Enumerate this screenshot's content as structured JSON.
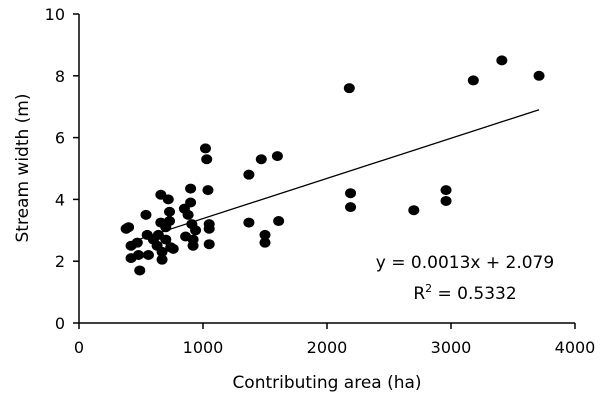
{
  "chart_data": {
    "type": "scatter",
    "xlabel": "Contributing area (ha)",
    "ylabel": "Stream width (m)",
    "xlim": [
      0,
      4000
    ],
    "ylim": [
      0,
      10
    ],
    "x_ticks": [
      "0",
      "1000",
      "2000",
      "3000",
      "4000"
    ],
    "y_ticks": [
      "0",
      "2",
      "4",
      "6",
      "8",
      "10"
    ],
    "grid": false,
    "legend": "none",
    "marker_color": "#000000",
    "points": [
      {
        "x": 380,
        "y": 3.05
      },
      {
        "x": 400,
        "y": 3.1
      },
      {
        "x": 420,
        "y": 2.1
      },
      {
        "x": 420,
        "y": 2.5
      },
      {
        "x": 470,
        "y": 2.6
      },
      {
        "x": 480,
        "y": 2.2
      },
      {
        "x": 490,
        "y": 1.7
      },
      {
        "x": 540,
        "y": 3.5
      },
      {
        "x": 550,
        "y": 2.85
      },
      {
        "x": 560,
        "y": 2.2
      },
      {
        "x": 600,
        "y": 2.7
      },
      {
        "x": 630,
        "y": 2.5
      },
      {
        "x": 640,
        "y": 2.85
      },
      {
        "x": 660,
        "y": 4.15
      },
      {
        "x": 660,
        "y": 3.25
      },
      {
        "x": 670,
        "y": 2.3
      },
      {
        "x": 670,
        "y": 2.05
      },
      {
        "x": 700,
        "y": 3.1
      },
      {
        "x": 700,
        "y": 2.7
      },
      {
        "x": 720,
        "y": 4.0
      },
      {
        "x": 730,
        "y": 3.6
      },
      {
        "x": 730,
        "y": 3.3
      },
      {
        "x": 740,
        "y": 2.45
      },
      {
        "x": 760,
        "y": 2.4
      },
      {
        "x": 850,
        "y": 3.7
      },
      {
        "x": 860,
        "y": 2.8
      },
      {
        "x": 880,
        "y": 3.5
      },
      {
        "x": 900,
        "y": 4.35
      },
      {
        "x": 900,
        "y": 3.9
      },
      {
        "x": 910,
        "y": 3.2
      },
      {
        "x": 920,
        "y": 2.7
      },
      {
        "x": 920,
        "y": 2.5
      },
      {
        "x": 940,
        "y": 3.0
      },
      {
        "x": 1020,
        "y": 5.65
      },
      {
        "x": 1030,
        "y": 5.3
      },
      {
        "x": 1040,
        "y": 4.3
      },
      {
        "x": 1050,
        "y": 3.2
      },
      {
        "x": 1050,
        "y": 3.05
      },
      {
        "x": 1050,
        "y": 2.55
      },
      {
        "x": 1370,
        "y": 4.8
      },
      {
        "x": 1370,
        "y": 3.25
      },
      {
        "x": 1470,
        "y": 5.3
      },
      {
        "x": 1500,
        "y": 2.85
      },
      {
        "x": 1500,
        "y": 2.6
      },
      {
        "x": 1600,
        "y": 5.4
      },
      {
        "x": 1610,
        "y": 3.3
      },
      {
        "x": 2180,
        "y": 7.6
      },
      {
        "x": 2190,
        "y": 4.2
      },
      {
        "x": 2190,
        "y": 3.75
      },
      {
        "x": 2700,
        "y": 3.65
      },
      {
        "x": 2960,
        "y": 4.3
      },
      {
        "x": 2960,
        "y": 3.95
      },
      {
        "x": 3180,
        "y": 7.85
      },
      {
        "x": 3410,
        "y": 8.5
      },
      {
        "x": 3710,
        "y": 8.0
      }
    ],
    "trendline": {
      "slope": 0.0013,
      "intercept": 2.079,
      "x_start": 400,
      "x_end": 3710
    },
    "equation": "y = 0.0013x + 2.079",
    "r2_prefix": "R",
    "r2_sup": "2",
    "r2_value": " = 0.5332"
  }
}
